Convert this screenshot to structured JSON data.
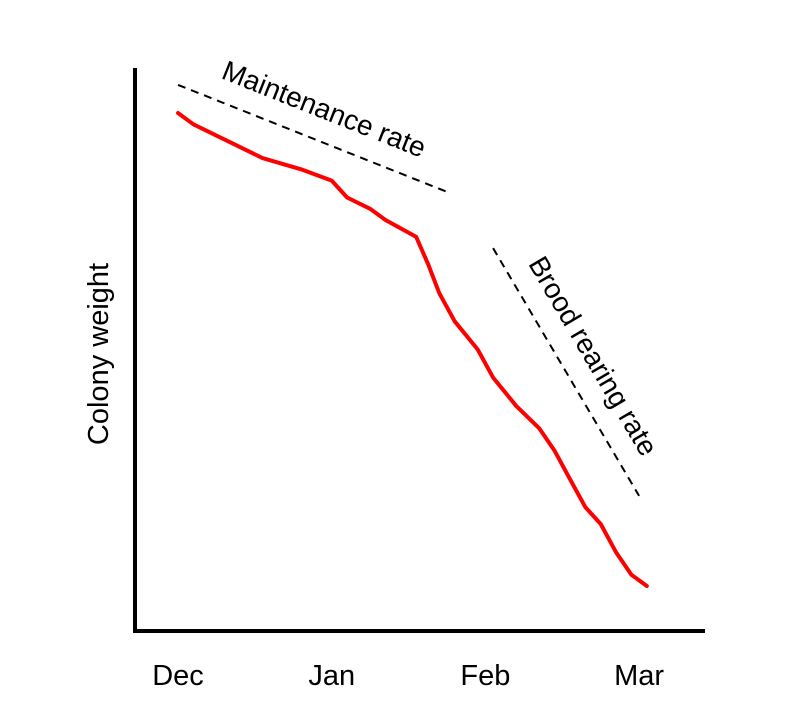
{
  "chart_data": {
    "type": "line",
    "title": "",
    "xlabel": "",
    "ylabel": "Colony weight",
    "x_ticks": [
      "Dec",
      "Jan",
      "Feb",
      "Mar"
    ],
    "xlim": [
      0,
      3.3
    ],
    "ylim": [
      0,
      1
    ],
    "grid": false,
    "series": [
      {
        "color": "#ff0000",
        "x": [
          0.0,
          0.1,
          0.25,
          0.4,
          0.55,
          0.8,
          1.0,
          1.1,
          1.25,
          1.35,
          1.55,
          1.63,
          1.7,
          1.8,
          1.95,
          2.05,
          2.2,
          2.35,
          2.45,
          2.55,
          2.65,
          2.75,
          2.85,
          2.95,
          3.05
        ],
        "y": [
          0.92,
          0.9,
          0.88,
          0.86,
          0.84,
          0.82,
          0.8,
          0.77,
          0.75,
          0.73,
          0.7,
          0.65,
          0.6,
          0.55,
          0.5,
          0.45,
          0.4,
          0.36,
          0.32,
          0.27,
          0.22,
          0.19,
          0.14,
          0.1,
          0.08
        ]
      }
    ],
    "annotations": [
      {
        "text": "Maintenance rate",
        "x1": 0.0,
        "y1": 0.97,
        "x2": 1.75,
        "y2": 0.78
      },
      {
        "text": "Brood rearing rate",
        "x1": 2.05,
        "y1": 0.68,
        "x2": 3.0,
        "y2": 0.24
      }
    ]
  }
}
